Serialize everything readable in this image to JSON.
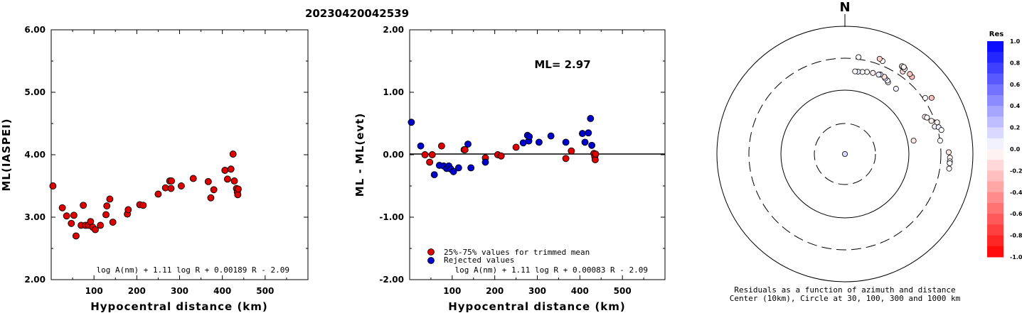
{
  "title": "20230420042539",
  "chart_data": [
    {
      "type": "scatter",
      "title": "",
      "xlabel": "Hypocentral distance (km)",
      "ylabel": "ML(IASPEI)",
      "xlim": [
        0,
        600
      ],
      "ylim": [
        2.0,
        6.0
      ],
      "xticks": [
        "100",
        "200",
        "300",
        "400",
        "500"
      ],
      "yticks": [
        "2.00",
        "3.00",
        "4.00",
        "5.00",
        "6.00"
      ],
      "formula": "log A(nm) + 1.11 log R + 0.00189 R - 2.09",
      "series": [
        {
          "color": "#dd0000",
          "points": [
            [
              4,
              3.5
            ],
            [
              26,
              3.15
            ],
            [
              36,
              3.02
            ],
            [
              47,
              2.9
            ],
            [
              53,
              3.03
            ],
            [
              58,
              2.7
            ],
            [
              70,
              2.87
            ],
            [
              75,
              3.19
            ],
            [
              80,
              2.87
            ],
            [
              87,
              2.87
            ],
            [
              92,
              2.93
            ],
            [
              97,
              2.84
            ],
            [
              103,
              2.8
            ],
            [
              115,
              2.87
            ],
            [
              128,
              3.04
            ],
            [
              130,
              3.18
            ],
            [
              137,
              3.29
            ],
            [
              144,
              2.92
            ],
            [
              178,
              3.05
            ],
            [
              180,
              3.12
            ],
            [
              207,
              3.2
            ],
            [
              215,
              3.19
            ],
            [
              250,
              3.37
            ],
            [
              267,
              3.47
            ],
            [
              277,
              3.58
            ],
            [
              280,
              3.46
            ],
            [
              281,
              3.58
            ],
            [
              304,
              3.5
            ],
            [
              332,
              3.62
            ],
            [
              367,
              3.57
            ],
            [
              373,
              3.31
            ],
            [
              380,
              3.44
            ],
            [
              406,
              3.75
            ],
            [
              412,
              3.61
            ],
            [
              420,
              3.77
            ],
            [
              425,
              4.01
            ],
            [
              428,
              3.58
            ],
            [
              433,
              3.46
            ],
            [
              435,
              3.4
            ],
            [
              436,
              3.36
            ],
            [
              437,
              3.45
            ]
          ]
        }
      ]
    },
    {
      "type": "scatter",
      "title": "",
      "xlabel": "Hypocentral distance (km)",
      "ylabel": "ML - ML(evt)",
      "xlim": [
        0,
        600
      ],
      "ylim": [
        -2.0,
        2.0
      ],
      "xticks": [
        "100",
        "200",
        "300",
        "400",
        "500"
      ],
      "yticks": [
        "-2.00",
        "-1.00",
        "0.00",
        "1.00",
        "2.00"
      ],
      "annotation": "ML= 2.97",
      "formula": "log A(nm) + 1.11 log R + 0.00083 R - 2.09",
      "legend": [
        {
          "label": "25%-75% values for trimmed mean",
          "color": "#dd0000"
        },
        {
          "label": "Rejected values",
          "color": "#0000cc"
        }
      ],
      "series": [
        {
          "name": "25%-75% values for trimmed mean",
          "color": "#dd0000",
          "points": [
            [
              36,
              0.0
            ],
            [
              47,
              -0.12
            ],
            [
              53,
              0.0
            ],
            [
              75,
              0.14
            ],
            [
              128,
              0.08
            ],
            [
              130,
              0.08
            ],
            [
              178,
              -0.05
            ],
            [
              207,
              0.0
            ],
            [
              215,
              -0.02
            ],
            [
              250,
              0.12
            ],
            [
              367,
              -0.06
            ],
            [
              380,
              0.06
            ],
            [
              433,
              0.02
            ],
            [
              435,
              -0.03
            ],
            [
              436,
              -0.08
            ],
            [
              437,
              0.01
            ]
          ]
        },
        {
          "name": "Rejected values",
          "color": "#0000cc",
          "points": [
            [
              4,
              0.52
            ],
            [
              26,
              0.14
            ],
            [
              58,
              -0.32
            ],
            [
              70,
              -0.17
            ],
            [
              80,
              -0.18
            ],
            [
              87,
              -0.22
            ],
            [
              92,
              -0.18
            ],
            [
              97,
              -0.23
            ],
            [
              103,
              -0.27
            ],
            [
              115,
              -0.21
            ],
            [
              137,
              0.17
            ],
            [
              144,
              -0.21
            ],
            [
              178,
              -0.12
            ],
            [
              267,
              0.19
            ],
            [
              277,
              0.31
            ],
            [
              280,
              0.22
            ],
            [
              281,
              0.29
            ],
            [
              304,
              0.2
            ],
            [
              332,
              0.3
            ],
            [
              367,
              0.2
            ],
            [
              406,
              0.34
            ],
            [
              412,
              0.2
            ],
            [
              420,
              0.35
            ],
            [
              425,
              0.58
            ],
            [
              428,
              0.15
            ]
          ]
        }
      ]
    },
    {
      "type": "polar-scatter",
      "north_label": "N",
      "caption_line1": "Residuals as a function of azimuth and distance",
      "caption_line2": "Center (10km), Circle at 30, 100, 300 and 1000 km",
      "colorbar": {
        "title": "Res",
        "labels": [
          "1.0",
          "0.8",
          "0.6",
          "0.4",
          "0.2",
          "0.0",
          "-0.2",
          "-0.4",
          "-0.6",
          "-0.8",
          "-1.0"
        ],
        "max_color": "#0000ff",
        "zero_color": "#ffffff",
        "min_color": "#ff0000"
      },
      "circles": [
        {
          "distance_km": 30,
          "style": "dashed"
        },
        {
          "distance_km": 100,
          "style": "solid"
        },
        {
          "distance_km": 300,
          "style": "dashed"
        },
        {
          "distance_km": 1000,
          "style": "solid"
        }
      ],
      "points": [
        [
          3,
          1,
          0.15
        ],
        [
          79,
          124,
          -0.1
        ],
        [
          38,
          198,
          0.05
        ],
        [
          31,
          204,
          -0.07
        ],
        [
          30,
          213,
          0.04
        ],
        [
          28,
          219,
          0.07
        ],
        [
          27,
          227,
          -0.11
        ],
        [
          24,
          230,
          0.08
        ],
        [
          23,
          224,
          0.07
        ],
        [
          19,
          220,
          -0.06
        ],
        [
          15,
          214,
          0.02
        ],
        [
          12,
          206,
          -0.02
        ],
        [
          9,
          202,
          0.1
        ],
        [
          7,
          201,
          -0.02
        ],
        [
          65,
          239,
          -0.08
        ],
        [
          66,
          253,
          0.0
        ],
        [
          69,
          280,
          -0.05
        ],
        [
          73,
          294,
          0.05
        ],
        [
          82,
          318,
          0.0
        ],
        [
          74,
          333,
          0.05
        ],
        [
          8,
          340,
          0.0
        ],
        [
          71,
          334,
          -0.05
        ],
        [
          55,
          340,
          0.0
        ],
        [
          76,
          358,
          0.0
        ],
        [
          22,
          371,
          0.0
        ],
        [
          35,
          377,
          -0.15
        ],
        [
          20,
          386,
          -0.2
        ],
        [
          41,
          396,
          -0.25
        ],
        [
          39,
          409,
          -0.22
        ],
        [
          57,
          412,
          -0.25
        ],
        [
          89,
          419,
          -0.1
        ],
        [
          35,
          425,
          0.0
        ],
        [
          33,
          432,
          -0.12
        ],
        [
          33,
          436,
          -0.08
        ],
        [
          92,
          438,
          -0.05
        ],
        [
          34,
          438,
          0.0
        ],
        [
          34,
          440,
          -0.03
        ],
        [
          94,
          440,
          0.0
        ],
        [
          95,
          440,
          0.02
        ],
        [
          98,
          441,
          -0.02
        ]
      ]
    }
  ]
}
